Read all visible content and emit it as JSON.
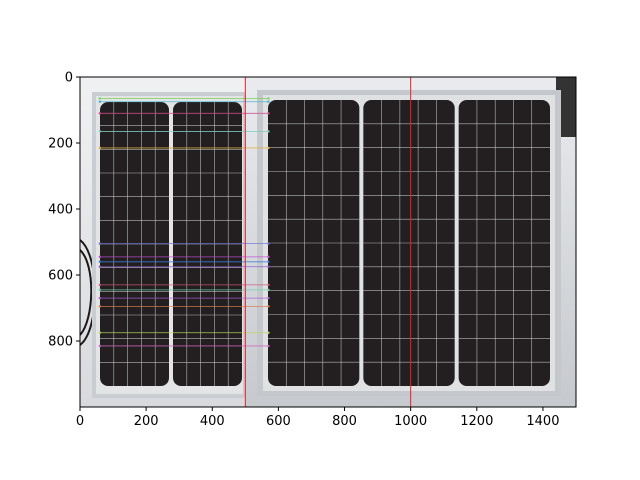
{
  "figure": {
    "type": "image-plot",
    "description_visible": "",
    "xlim": [
      0,
      1500
    ],
    "ylim": [
      1000,
      0
    ],
    "xticks": [
      0,
      200,
      400,
      600,
      800,
      1000,
      1200,
      1400
    ],
    "yticks": [
      0,
      200,
      400,
      600,
      800
    ],
    "split_line_x": 500,
    "center_line_x": 1000,
    "colors": {
      "frame": "#c9ccd0",
      "panel_cell": "#231f20",
      "grid": "#d9dde0",
      "background": "#e6e9ec",
      "wall": "#dcdcdc",
      "cable": "#1a1a1a",
      "red_line": "#e8202a"
    }
  },
  "match_lines": [
    {
      "y": 65,
      "color": "#7bd45a"
    },
    {
      "y": 75,
      "color": "#3fb5c9"
    },
    {
      "y": 110,
      "color": "#d14a8a"
    },
    {
      "y": 165,
      "color": "#7fd0c2"
    },
    {
      "y": 215,
      "color": "#e0b440"
    },
    {
      "y": 505,
      "color": "#6a74e0"
    },
    {
      "y": 545,
      "color": "#c04bd8"
    },
    {
      "y": 560,
      "color": "#3b7bd8"
    },
    {
      "y": 575,
      "color": "#8a56d0"
    },
    {
      "y": 630,
      "color": "#d0567a"
    },
    {
      "y": 645,
      "color": "#6ad0a8"
    },
    {
      "y": 670,
      "color": "#b05ad8"
    },
    {
      "y": 695,
      "color": "#e07c4a"
    },
    {
      "y": 775,
      "color": "#b8d860"
    },
    {
      "y": 815,
      "color": "#d066c0"
    }
  ]
}
